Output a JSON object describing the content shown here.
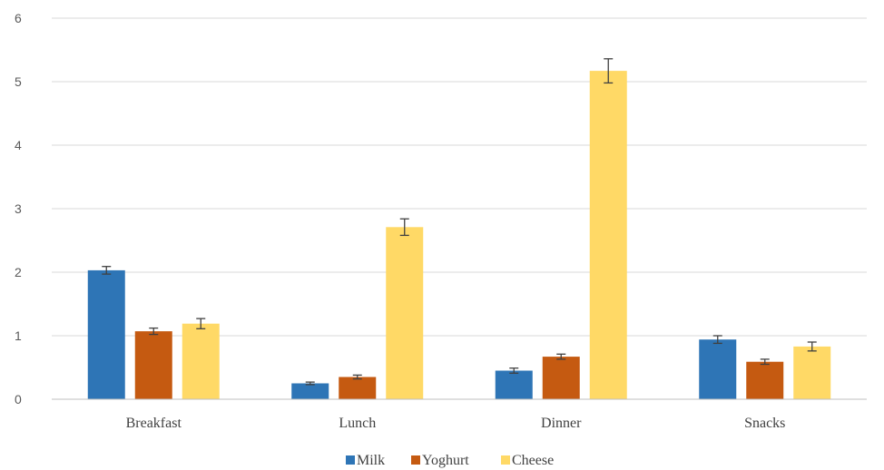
{
  "chart_data": {
    "type": "bar",
    "title": "",
    "xlabel": "",
    "ylabel": "",
    "ylim": [
      0,
      6
    ],
    "yticks": [
      0,
      1,
      2,
      3,
      4,
      5,
      6
    ],
    "grid": true,
    "legend_position": "bottom",
    "categories": [
      "Breakfast",
      "Lunch",
      "Dinner",
      "Snacks"
    ],
    "series": [
      {
        "name": "Milk",
        "color": "#2e75b6",
        "values": [
          2.03,
          0.25,
          0.45,
          0.94
        ],
        "errors": [
          0.06,
          0.02,
          0.04,
          0.06
        ]
      },
      {
        "name": "Yoghurt",
        "color": "#c55a11",
        "values": [
          1.07,
          0.35,
          0.67,
          0.59
        ],
        "errors": [
          0.05,
          0.03,
          0.04,
          0.04
        ]
      },
      {
        "name": "Cheese",
        "color": "#ffd966",
        "values": [
          1.19,
          2.71,
          5.17,
          0.83
        ],
        "errors": [
          0.08,
          0.13,
          0.19,
          0.07
        ]
      }
    ]
  }
}
